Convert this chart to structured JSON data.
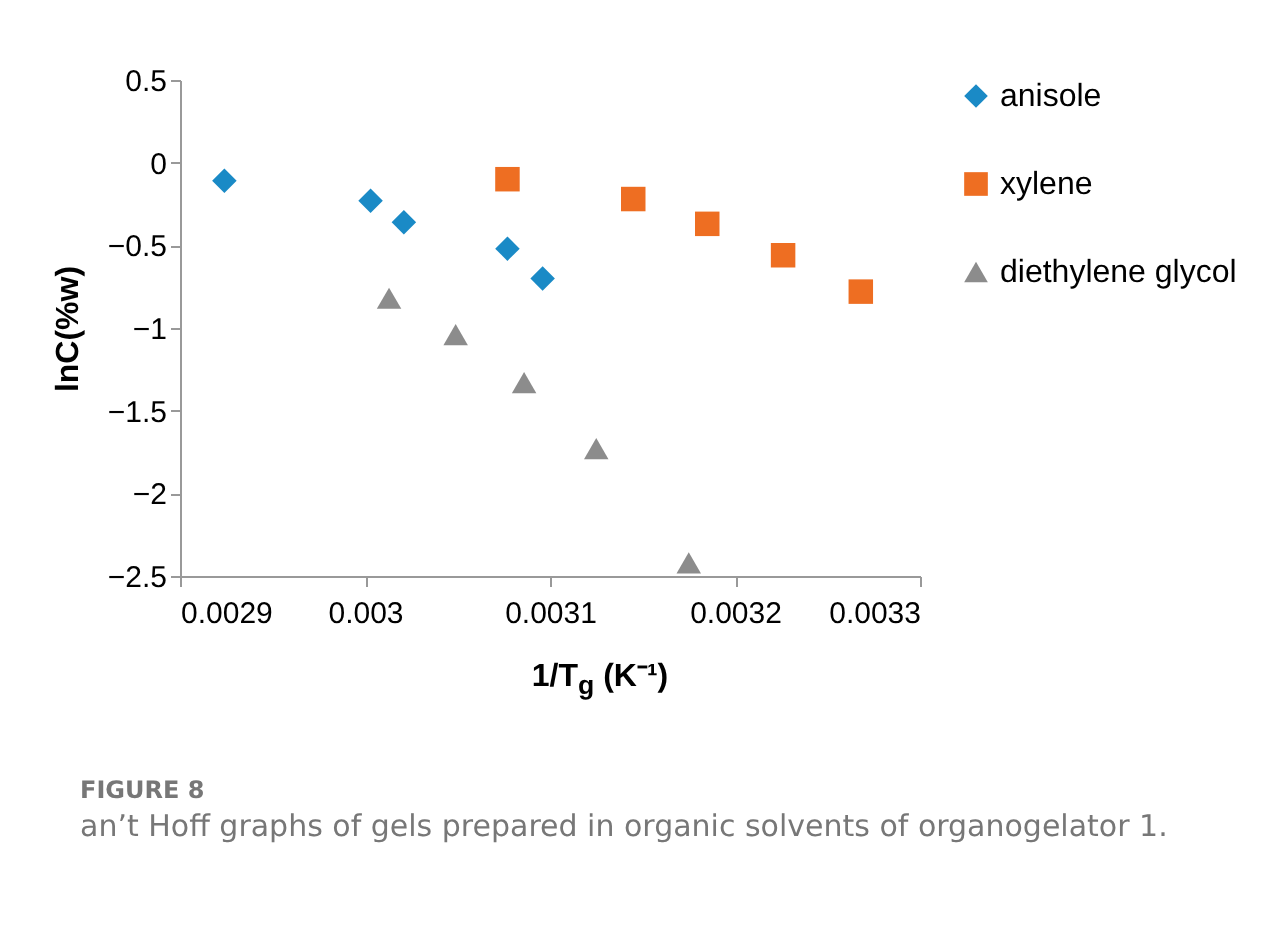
{
  "chart_data": {
    "type": "scatter",
    "xlabel": "1/T$_{g}$ (K⁻¹)",
    "ylabel": "lnC(%w)",
    "xlim": [
      0.0029,
      0.0033
    ],
    "xticks": [
      0.0029,
      0.003,
      0.0031,
      0.0032,
      0.0033
    ],
    "ylim": [
      -2.5,
      0.5
    ],
    "yticks": [
      -2.5,
      -2,
      -1.5,
      -1,
      -0.5,
      0,
      0.5
    ],
    "grid": false,
    "legend": "right",
    "series": [
      {
        "name": "anisole",
        "color": "#1a8ac6",
        "marker": "diamond",
        "x": [
          0.002924,
          0.003003,
          0.003021,
          0.003077,
          0.003096
        ],
        "values": [
          -0.11,
          -0.23,
          -0.36,
          -0.52,
          -0.7
        ]
      },
      {
        "name": "xylene",
        "color": "#ee6e22",
        "marker": "square",
        "x": [
          0.003077,
          0.003145,
          0.003185,
          0.003226,
          0.003268
        ],
        "values": [
          -0.1,
          -0.22,
          -0.37,
          -0.56,
          -0.78
        ]
      },
      {
        "name": "diethylene glycol",
        "color": "#8c8c8c",
        "marker": "triangle",
        "x": [
          0.003013,
          0.003049,
          0.003086,
          0.003125,
          0.003175
        ],
        "values": [
          -0.82,
          -1.04,
          -1.33,
          -1.73,
          -2.42
        ]
      }
    ],
    "annotations": [
      "FIGURE 8",
      "an’t Hoff graphs of gels prepared in organic solvents of organogelator 1."
    ]
  }
}
